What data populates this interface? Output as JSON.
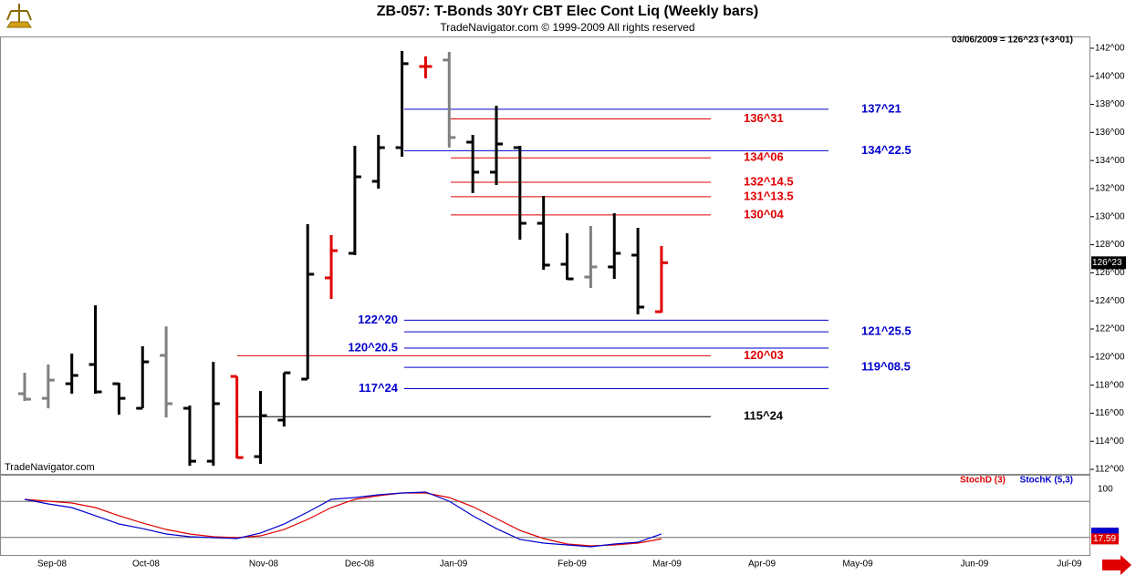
{
  "chart_data": [
    {
      "type": "ohlc",
      "title": "ZB-057:  T-Bonds 30Yr CBT Elec Cont Liq  (Weekly bars)",
      "subtitle": "TradeNavigator.com © 1999-2009 All rights reserved",
      "header": "03/06/2009 = 126^23 (+3^01)",
      "watermark": "TradeNavigator.com",
      "ylim": [
        111.68,
        142.71
      ],
      "yticks": [
        {
          "value": 112,
          "label": "112^00"
        },
        {
          "value": 114,
          "label": "114^00"
        },
        {
          "value": 116,
          "label": "116^00"
        },
        {
          "value": 118,
          "label": "118^00"
        },
        {
          "value": 120,
          "label": "120^00"
        },
        {
          "value": 122,
          "label": "122^00"
        },
        {
          "value": 124,
          "label": "124^00"
        },
        {
          "value": 126,
          "label": "126^00"
        },
        {
          "value": 128,
          "label": "128^00"
        },
        {
          "value": 130,
          "label": "130^00"
        },
        {
          "value": 132,
          "label": "132^00"
        },
        {
          "value": 134,
          "label": "134^00"
        },
        {
          "value": 136,
          "label": "136^00"
        },
        {
          "value": 138,
          "label": "138^00"
        },
        {
          "value": 140,
          "label": "140^00"
        },
        {
          "value": 142,
          "label": "142^00"
        }
      ],
      "x_labels": [
        "Sep-08",
        "Oct-08",
        "Nov-08",
        "Dec-08",
        "Jan-09",
        "Feb-09",
        "Mar-09",
        "Apr-09",
        "May-09",
        "Jun-09",
        "Jul-09"
      ],
      "bars": {
        "open": [
          117.39,
          117.06,
          118.1,
          119.47,
          118.1,
          116.35,
          120.12,
          116.35,
          112.58,
          118.62,
          112.91,
          115.51,
          118.43,
          125.64,
          127.39,
          132.52,
          134.92,
          140.7,
          141.16,
          135.31,
          133.17,
          134.92,
          129.53,
          126.61,
          125.7,
          126.42,
          127.26,
          123.23
        ],
        "high": [
          118.88,
          119.47,
          120.25,
          123.69,
          118.17,
          120.77,
          122.19,
          116.55,
          119.66,
          118.62,
          117.58,
          118.88,
          129.47,
          128.69,
          135.05,
          135.83,
          141.81,
          141.42,
          141.74,
          135.83,
          137.91,
          135.05,
          131.48,
          128.82,
          129.34,
          130.25,
          129.21,
          127.91
        ],
        "low": [
          116.87,
          116.35,
          117.39,
          117.39,
          115.9,
          116.35,
          115.7,
          112.26,
          112.26,
          112.78,
          112.39,
          115.05,
          118.43,
          124.14,
          127.26,
          132.0,
          134.27,
          139.86,
          134.92,
          131.68,
          132.26,
          128.36,
          126.22,
          125.51,
          124.92,
          125.57,
          123.04,
          123.17
        ],
        "close": [
          117.0,
          118.36,
          118.69,
          117.52,
          117.06,
          119.66,
          116.68,
          112.58,
          116.68,
          112.84,
          115.83,
          118.88,
          125.9,
          127.58,
          132.84,
          134.92,
          140.9,
          140.7,
          135.64,
          133.17,
          135.18,
          129.53,
          126.55,
          125.57,
          126.42,
          127.39,
          123.56,
          126.71875
        ],
        "colors": [
          "#808080",
          "#808080",
          "#000000",
          "#000000",
          "#000000",
          "#000000",
          "#808080",
          "#000000",
          "#000000",
          "#e00000",
          "#000000",
          "#000000",
          "#000000",
          "#e00000",
          "#000000",
          "#000000",
          "#000000",
          "#e00000",
          "#808080",
          "#000000",
          "#000000",
          "#000000",
          "#000000",
          "#000000",
          "#808080",
          "#000000",
          "#000000",
          "#e00000"
        ]
      },
      "last_price": {
        "value": 126.71875,
        "label": "126^23"
      },
      "levels": [
        {
          "value": 137.65625,
          "label": "137^21",
          "color": "#0000cc"
        },
        {
          "value": 136.96875,
          "label": "136^31",
          "color": "#e00000"
        },
        {
          "value": 134.703125,
          "label": "134^22.5",
          "color": "#0000cc"
        },
        {
          "value": 134.1875,
          "label": "134^06",
          "color": "#e00000"
        },
        {
          "value": 132.453125,
          "label": "132^14.5",
          "color": "#e00000"
        },
        {
          "value": 131.421875,
          "label": "131^13.5",
          "color": "#e00000"
        },
        {
          "value": 130.125,
          "label": "130^04",
          "color": "#e00000"
        },
        {
          "value": 122.625,
          "label": "122^20",
          "color": "#0000cc"
        },
        {
          "value": 121.796875,
          "label": "121^25.5",
          "color": "#0000cc"
        },
        {
          "value": 120.640625,
          "label": "120^20.5",
          "color": "#0000cc"
        },
        {
          "value": 120.09375,
          "label": "120^03",
          "color": "#e00000"
        },
        {
          "value": 119.265625,
          "label": "119^08.5",
          "color": "#0000cc"
        },
        {
          "value": 117.75,
          "label": "117^24",
          "color": "#0000cc"
        },
        {
          "value": 115.75,
          "label": "115^24",
          "color": "#000000"
        }
      ]
    },
    {
      "type": "line",
      "ylim": [
        0,
        100
      ],
      "yticks": [
        100
      ],
      "levels": [
        80,
        20
      ],
      "series": [
        {
          "name": "StochD (3)",
          "color": "#e00000",
          "values": [
            83.3,
            80.3,
            77.3,
            69.7,
            56.1,
            44.0,
            33.3,
            25.8,
            21.2,
            19.7,
            22.7,
            33.3,
            50.0,
            69.7,
            83.3,
            89.4,
            93.9,
            93.9,
            86.4,
            71.2,
            51.5,
            31.8,
            18.2,
            9.1,
            6.1,
            7.6,
            10.6,
            17.59
          ]
        },
        {
          "name": "StochK (5,3)",
          "color": "#0000cc",
          "values": [
            83.3,
            75.8,
            69.7,
            56.1,
            42.4,
            34.8,
            25.8,
            21.2,
            19.7,
            18.2,
            27.3,
            42.4,
            62.1,
            83.3,
            86.4,
            90.9,
            93.9,
            95.5,
            80.3,
            56.1,
            34.8,
            16.7,
            10.6,
            7.6,
            4.5,
            9.1,
            12.1,
            25.8
          ]
        }
      ]
    }
  ]
}
